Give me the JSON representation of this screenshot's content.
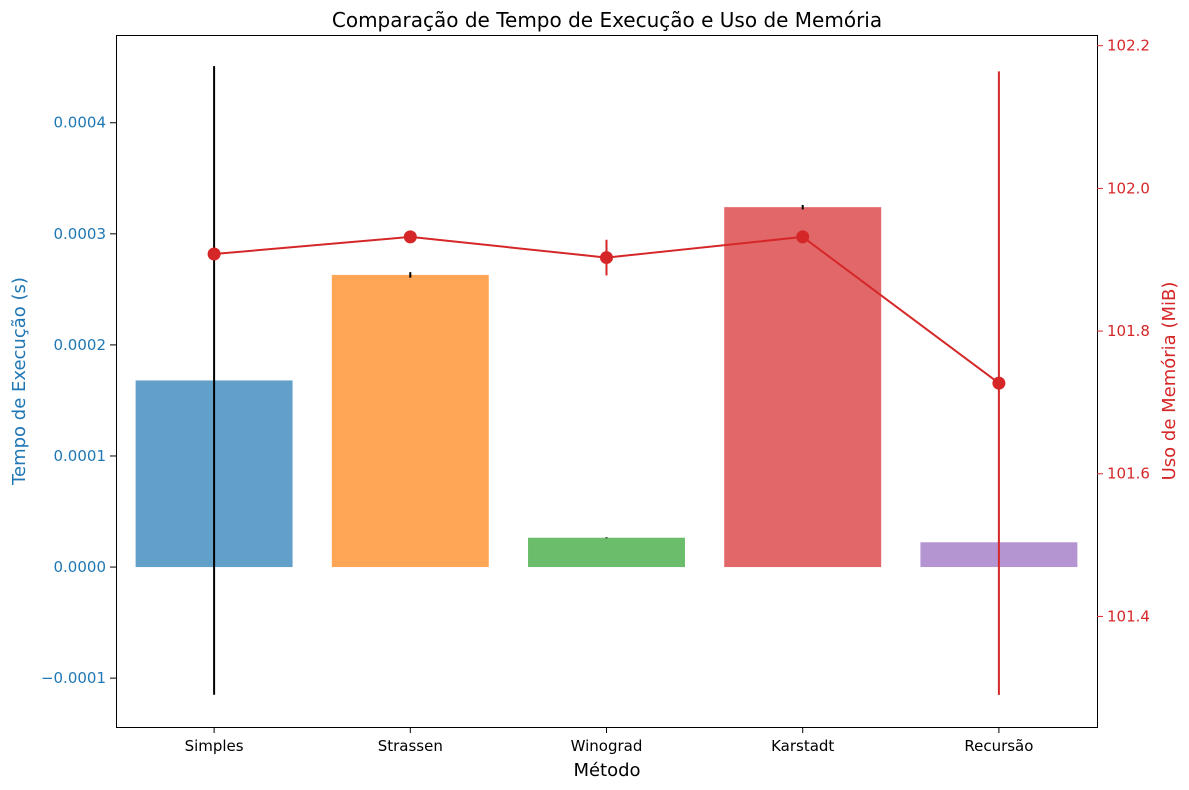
{
  "chart_data": {
    "type": "bar",
    "title": "Comparação de Tempo de Execução e Uso de Memória",
    "xlabel": "Método",
    "ylabel": "Tempo de Execução (s)",
    "ylabel_right": "Uso de Memória (MiB)",
    "categories": [
      "Simples",
      "Strassen",
      "Winograd",
      "Karstadt",
      "Recursão"
    ],
    "bar_colors": [
      "#1f77b4",
      "#ff7f0e",
      "#2ca02c",
      "#d62728",
      "#9467bd"
    ],
    "left_axis_color": "#1f77b4",
    "right_axis_color": "#d62728",
    "ylim": [
      -0.000144,
      0.000479
    ],
    "ylim_right": [
      101.245,
      102.215
    ],
    "yticks": [
      -0.0001,
      0.0,
      0.0001,
      0.0002,
      0.0003,
      0.0004
    ],
    "ytick_labels": [
      "−0.0001",
      "0.0000",
      "0.0001",
      "0.0002",
      "0.0003",
      "0.0004"
    ],
    "yticks_right": [
      101.4,
      101.6,
      101.8,
      102.0,
      102.2
    ],
    "ytick_labels_right": [
      "101.4",
      "101.6",
      "101.8",
      "102.0",
      "102.2"
    ],
    "series": [
      {
        "axis": "left",
        "kind": "bar",
        "values": [
          0.000168,
          0.000263,
          2.64e-05,
          0.000324,
          2.23e-05
        ],
        "errors": [
          0.000283,
          2.5e-06,
          4e-07,
          2e-06,
          0.0
        ]
      },
      {
        "axis": "right",
        "kind": "line",
        "values": [
          101.908,
          101.932,
          101.903,
          101.932,
          101.727
        ],
        "errors": [
          0.0,
          0.0,
          0.025,
          0.0,
          0.437
        ]
      }
    ],
    "grid": false
  }
}
